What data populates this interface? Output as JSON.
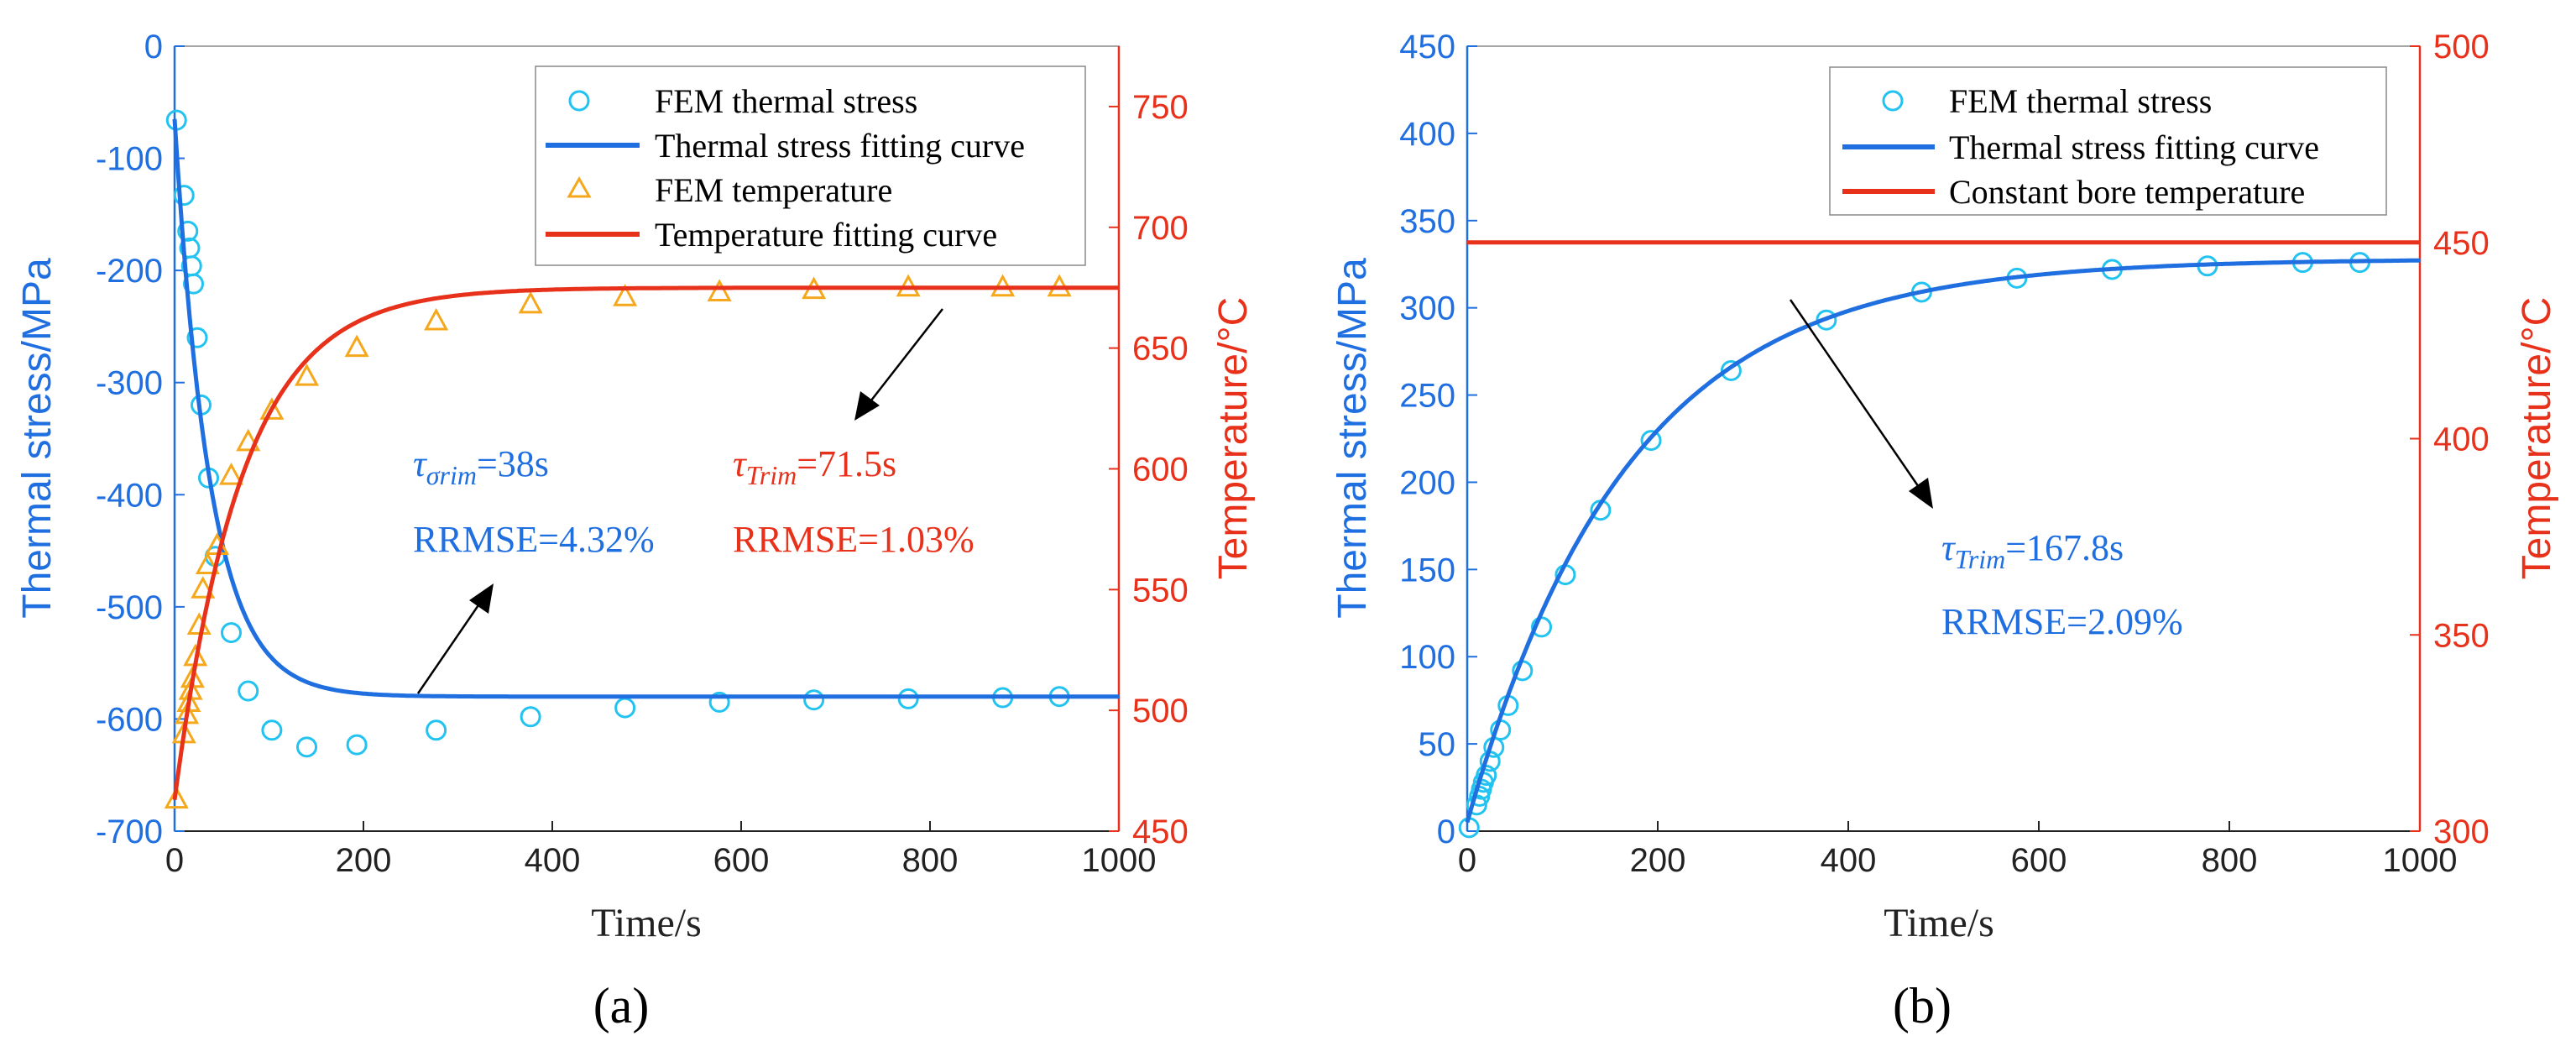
{
  "colors": {
    "stress": "#1f6fe0",
    "stress_marker": "#22c3f0",
    "temperature": "#e8311a",
    "temp_marker": "#f5a81c",
    "axis_x": "#222222",
    "arrow": "#000000"
  },
  "chart_data": [
    {
      "panel": "a",
      "panel_label": "(a)",
      "type": "line",
      "xlabel": "Time/s",
      "ylabel_left": "Thermal stress/MPa",
      "ylabel_right": "Temperature/°C",
      "xlim": [
        0,
        1000
      ],
      "ylim_left": [
        -700,
        0
      ],
      "ylim_right": [
        450,
        775
      ],
      "x_ticks": [
        "0",
        "200",
        "400",
        "600",
        "800",
        "1000"
      ],
      "y_ticks_left": [
        "0",
        "-100",
        "-200",
        "-300",
        "-400",
        "-500",
        "-600",
        "-700"
      ],
      "y_ticks_right": [
        "750",
        "700",
        "650",
        "600",
        "550",
        "500",
        "450"
      ],
      "legend": {
        "position": "top-right",
        "entries": [
          "FEM thermal stress",
          "Thermal stress fitting curve",
          "FEM temperature",
          "Temperature fitting curve"
        ]
      },
      "series": [
        {
          "name": "FEM thermal stress",
          "kind": "marker-circle",
          "axis": "left",
          "x": [
            2,
            10,
            14,
            16,
            18,
            20,
            24,
            28,
            36,
            43,
            60,
            78,
            103,
            140,
            193,
            277,
            377,
            477,
            577,
            677,
            777,
            877,
            937
          ],
          "y": [
            -66,
            -133,
            -165,
            -180,
            -196,
            -212,
            -260,
            -320,
            -385,
            -455,
            -523,
            -575,
            -610,
            -625,
            -623,
            -610,
            -598,
            -590,
            -585,
            -583,
            -582,
            -581,
            -580
          ]
        },
        {
          "name": "Thermal stress fitting curve",
          "kind": "line",
          "axis": "left",
          "model": {
            "form": "exp",
            "y0": -65,
            "yinf": -580,
            "tau": 38
          }
        },
        {
          "name": "FEM temperature",
          "kind": "marker-triangle",
          "axis": "right",
          "x": [
            2,
            10,
            13,
            15,
            17,
            19,
            22,
            26,
            30,
            35,
            45,
            60,
            78,
            103,
            140,
            193,
            277,
            377,
            477,
            577,
            677,
            777,
            877,
            937
          ],
          "y": [
            463,
            490,
            498,
            503,
            508,
            513,
            522,
            535,
            550,
            560,
            568,
            597,
            611,
            624,
            638,
            650,
            661,
            668,
            671,
            673,
            674,
            675,
            675,
            675
          ]
        },
        {
          "name": "Temperature fitting curve",
          "kind": "line",
          "axis": "right",
          "model": {
            "form": "exp",
            "y0": 463,
            "yinf": 675,
            "tau": 71.5
          }
        }
      ],
      "annotations": [
        {
          "color": "stress",
          "symbol": "τ",
          "subscript": "σrim",
          "value": "=38s",
          "rrmse": "RRMSE=4.32%"
        },
        {
          "color": "temperature",
          "symbol": "τ",
          "subscript": "Trim",
          "value": "=71.5s",
          "rrmse": "RRMSE=1.03%"
        }
      ]
    },
    {
      "panel": "b",
      "panel_label": "(b)",
      "type": "line",
      "xlabel": "Time/s",
      "ylabel_left": "Thermal stress/MPa",
      "ylabel_right": "Temperature/°C",
      "xlim": [
        0,
        1000
      ],
      "ylim_left": [
        0,
        450
      ],
      "ylim_right": [
        300,
        500
      ],
      "x_ticks": [
        "0",
        "200",
        "400",
        "600",
        "800",
        "1000"
      ],
      "y_ticks_left": [
        "0",
        "50",
        "100",
        "150",
        "200",
        "250",
        "300",
        "350",
        "400",
        "450"
      ],
      "y_ticks_right": [
        "300",
        "350",
        "400",
        "450",
        "500"
      ],
      "legend": {
        "position": "top-right",
        "entries": [
          "FEM thermal stress",
          "Thermal stress fitting curve",
          "Constant bore temperature"
        ]
      },
      "series": [
        {
          "name": "FEM thermal stress",
          "kind": "marker-circle",
          "axis": "left",
          "x": [
            2,
            10,
            13,
            15,
            17,
            20,
            24,
            28,
            35,
            43,
            58,
            78,
            103,
            140,
            193,
            277,
            377,
            477,
            577,
            677,
            777,
            877,
            937
          ],
          "y": [
            2,
            15,
            20,
            24,
            28,
            32,
            40,
            48,
            58,
            72,
            92,
            117,
            147,
            184,
            224,
            264,
            293,
            309,
            317,
            322,
            324,
            326,
            326
          ]
        },
        {
          "name": "Thermal stress fitting curve",
          "kind": "line",
          "axis": "left",
          "model": {
            "form": "exp",
            "y0": 5,
            "yinf": 328,
            "tau": 167.8
          }
        },
        {
          "name": "Constant bore temperature",
          "kind": "hline",
          "axis": "right",
          "value": 450
        }
      ],
      "annotations": [
        {
          "color": "stress",
          "symbol": "τ",
          "subscript": "Trim",
          "value": "=167.8s",
          "rrmse": "RRMSE=2.09%"
        }
      ]
    }
  ]
}
